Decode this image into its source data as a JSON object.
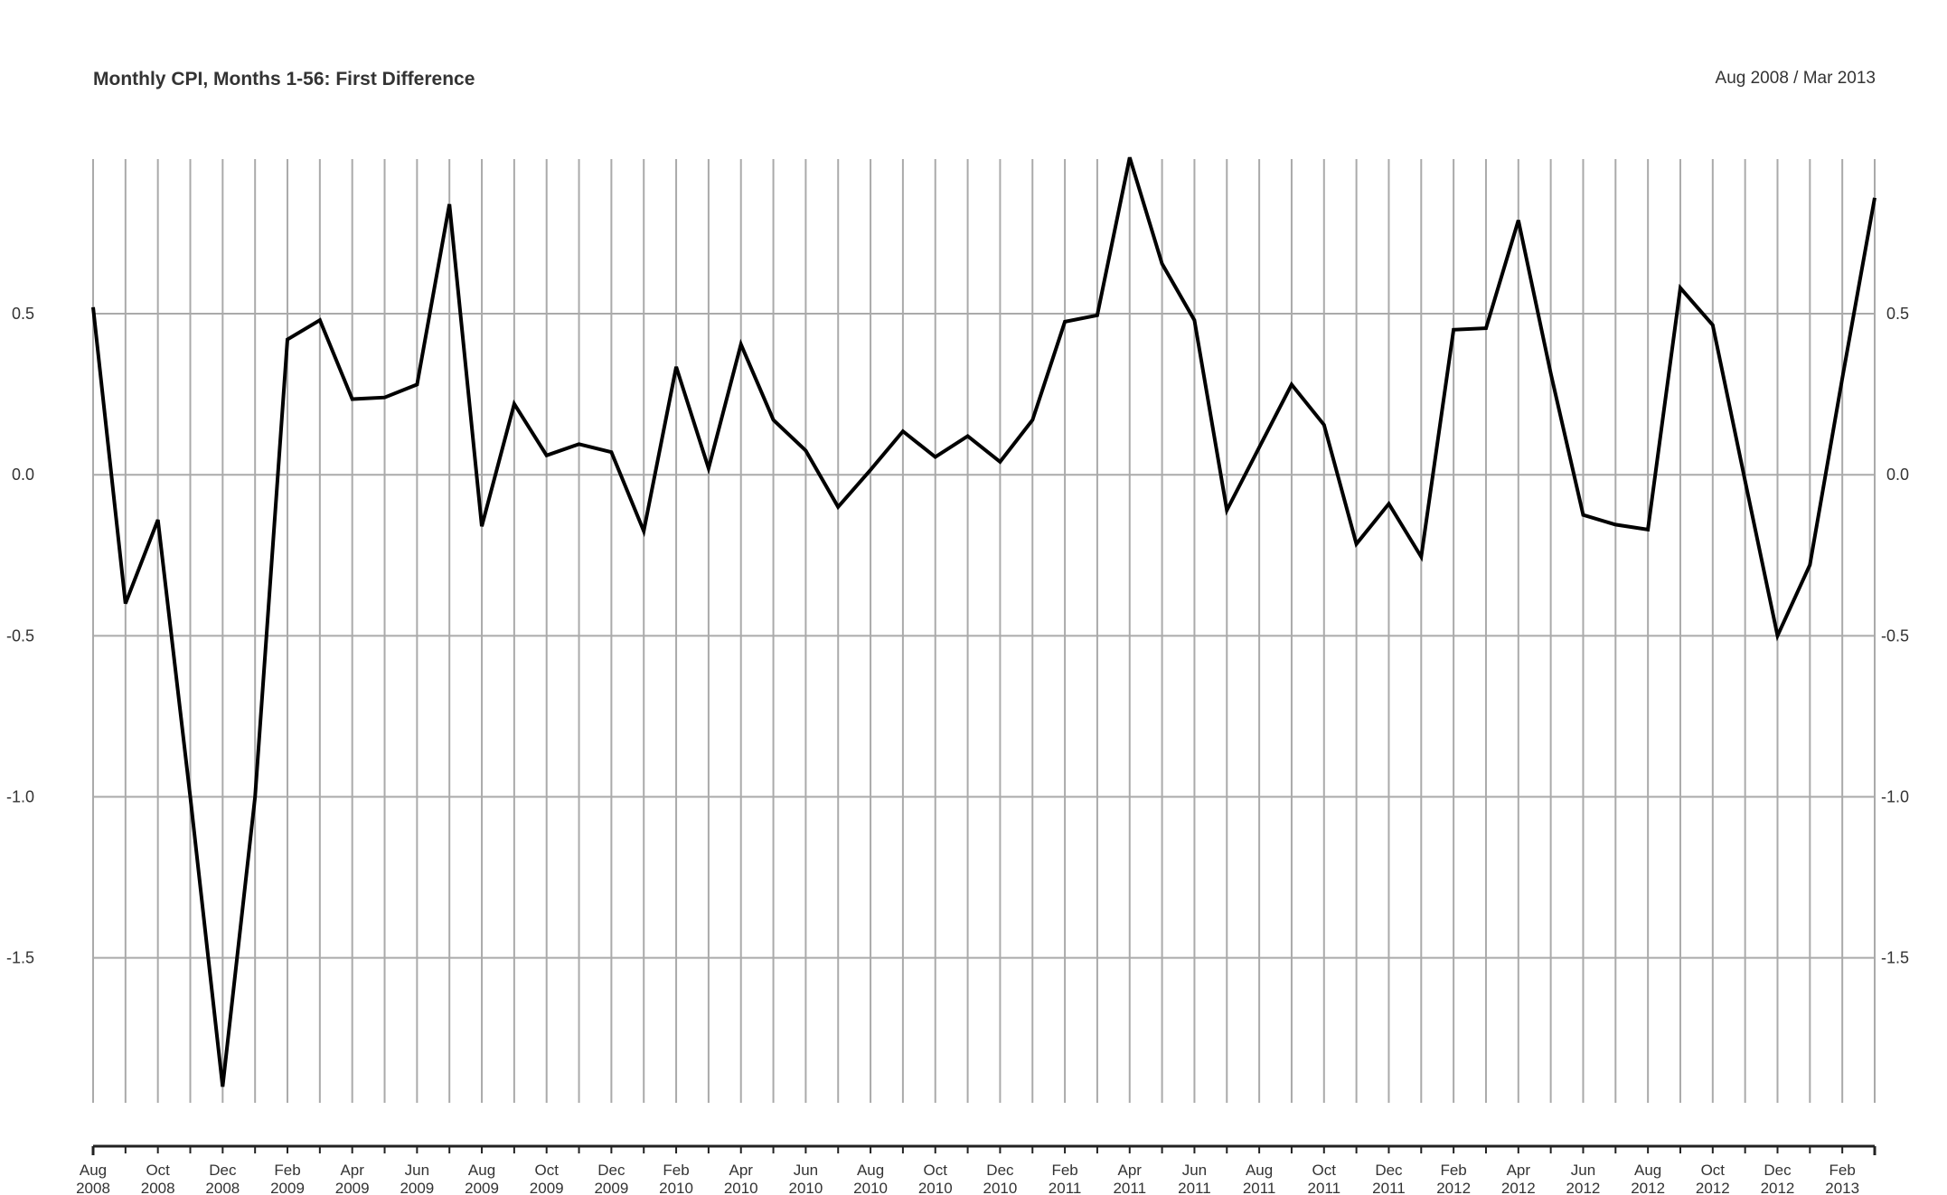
{
  "chart_data": {
    "type": "line",
    "title": "Monthly CPI, Months 1-56: First Difference",
    "subtitle": "Aug 2008 / Mar 2013",
    "xlabel": "",
    "ylabel": "",
    "ylim": [
      -1.95,
      0.98
    ],
    "y_ticks": [
      "0.5",
      "0.0",
      "-0.5",
      "-1.0",
      "-1.5"
    ],
    "y_tick_values": [
      0.5,
      0.0,
      -0.5,
      -1.0,
      -1.5
    ],
    "grid": true,
    "line_color": "#000000",
    "grid_color": "#aaaaaa",
    "x_labels": [
      {
        "index": 0,
        "month": "Aug",
        "year": "2008"
      },
      {
        "index": 2,
        "month": "Oct",
        "year": "2008"
      },
      {
        "index": 4,
        "month": "Dec",
        "year": "2008"
      },
      {
        "index": 6,
        "month": "Feb",
        "year": "2009"
      },
      {
        "index": 8,
        "month": "Apr",
        "year": "2009"
      },
      {
        "index": 10,
        "month": "Jun",
        "year": "2009"
      },
      {
        "index": 12,
        "month": "Aug",
        "year": "2009"
      },
      {
        "index": 14,
        "month": "Oct",
        "year": "2009"
      },
      {
        "index": 16,
        "month": "Dec",
        "year": "2009"
      },
      {
        "index": 18,
        "month": "Feb",
        "year": "2010"
      },
      {
        "index": 20,
        "month": "Apr",
        "year": "2010"
      },
      {
        "index": 22,
        "month": "Jun",
        "year": "2010"
      },
      {
        "index": 24,
        "month": "Aug",
        "year": "2010"
      },
      {
        "index": 26,
        "month": "Oct",
        "year": "2010"
      },
      {
        "index": 28,
        "month": "Dec",
        "year": "2010"
      },
      {
        "index": 30,
        "month": "Feb",
        "year": "2011"
      },
      {
        "index": 32,
        "month": "Apr",
        "year": "2011"
      },
      {
        "index": 34,
        "month": "Jun",
        "year": "2011"
      },
      {
        "index": 36,
        "month": "Aug",
        "year": "2011"
      },
      {
        "index": 38,
        "month": "Oct",
        "year": "2011"
      },
      {
        "index": 40,
        "month": "Dec",
        "year": "2011"
      },
      {
        "index": 42,
        "month": "Feb",
        "year": "2012"
      },
      {
        "index": 44,
        "month": "Apr",
        "year": "2012"
      },
      {
        "index": 46,
        "month": "Jun",
        "year": "2012"
      },
      {
        "index": 48,
        "month": "Aug",
        "year": "2012"
      },
      {
        "index": 50,
        "month": "Oct",
        "year": "2012"
      },
      {
        "index": 52,
        "month": "Dec",
        "year": "2012"
      },
      {
        "index": 54,
        "month": "Feb",
        "year": "2013"
      }
    ],
    "x": [
      "Aug 2008",
      "Sep 2008",
      "Oct 2008",
      "Nov 2008",
      "Dec 2008",
      "Jan 2009",
      "Feb 2009",
      "Mar 2009",
      "Apr 2009",
      "May 2009",
      "Jun 2009",
      "Jul 2009",
      "Aug 2009",
      "Sep 2009",
      "Oct 2009",
      "Nov 2009",
      "Dec 2009",
      "Jan 2010",
      "Feb 2010",
      "Mar 2010",
      "Apr 2010",
      "May 2010",
      "Jun 2010",
      "Jul 2010",
      "Aug 2010",
      "Sep 2010",
      "Oct 2010",
      "Nov 2010",
      "Dec 2010",
      "Jan 2011",
      "Feb 2011",
      "Mar 2011",
      "Apr 2011",
      "May 2011",
      "Jun 2011",
      "Jul 2011",
      "Aug 2011",
      "Sep 2011",
      "Oct 2011",
      "Nov 2011",
      "Dec 2011",
      "Jan 2012",
      "Feb 2012",
      "Mar 2012",
      "Apr 2012",
      "May 2012",
      "Jun 2012",
      "Jul 2012",
      "Aug 2012",
      "Sep 2012",
      "Oct 2012",
      "Nov 2012",
      "Dec 2012",
      "Jan 2013",
      "Feb 2013",
      "Mar 2013"
    ],
    "series": [
      {
        "values": [
          0.52,
          -0.4,
          -0.14,
          -1.0,
          -1.9,
          -1.0,
          0.42,
          0.48,
          0.235,
          0.24,
          0.28,
          0.84,
          -0.16,
          0.22,
          0.06,
          0.095,
          0.07,
          -0.175,
          0.335,
          0.02,
          0.405,
          0.17,
          0.075,
          -0.1,
          0.015,
          0.135,
          0.055,
          0.12,
          0.04,
          0.17,
          0.475,
          0.495,
          0.985,
          0.655,
          0.48,
          -0.11,
          0.085,
          0.28,
          0.155,
          -0.215,
          -0.09,
          -0.255,
          0.45,
          0.455,
          0.79,
          0.315,
          -0.125,
          -0.155,
          -0.17,
          0.58,
          0.465,
          -0.02,
          -0.5,
          -0.28,
          0.3,
          0.86
        ]
      }
    ]
  }
}
